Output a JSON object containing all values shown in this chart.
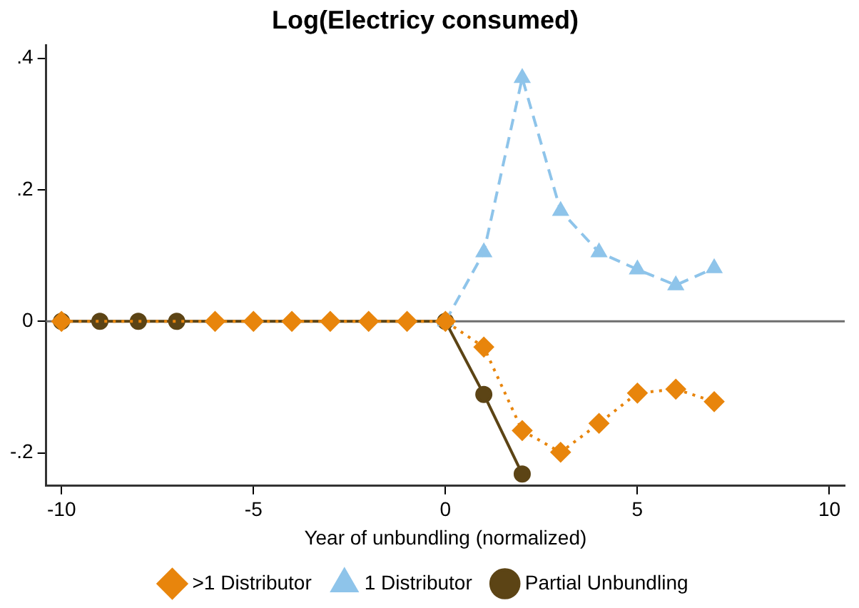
{
  "chart_data": {
    "type": "line",
    "title": "Log(Electricy consumed)",
    "xlabel": "Year of unbundling (normalized)",
    "xlim": [
      -10.4,
      10.4
    ],
    "xticks": [
      -10,
      -5,
      0,
      5,
      10
    ],
    "ylim": [
      -0.25,
      0.42
    ],
    "yticks": [
      {
        "value": -0.2,
        "label": "-.2"
      },
      0,
      {
        "value": 0.2,
        "label": ".2"
      },
      {
        "value": 0.4,
        "label": ".4"
      }
    ],
    "grid": false,
    "legend": "bottom",
    "ref_lines": [
      {
        "axis": "y",
        "value": 0,
        "color": "#6e6e6e"
      }
    ],
    "series": [
      {
        "name": "Partial Unbundling",
        "color": "#5c4415",
        "marker": "circle",
        "line_style": "solid",
        "x": [
          -10,
          -9,
          -8,
          -7,
          0,
          1,
          2
        ],
        "values": [
          0,
          0,
          0,
          0,
          0,
          -0.111,
          -0.232
        ]
      },
      {
        "name": "1 Distributor",
        "color": "#8ec4ea",
        "marker": "triangle",
        "line_style": "dashed",
        "x": [
          0,
          1,
          2,
          3,
          4,
          5,
          6,
          7
        ],
        "values": [
          0,
          0.105,
          0.37,
          0.168,
          0.105,
          0.079,
          0.055,
          0.081
        ]
      },
      {
        "name": ">1 Distributor",
        "color": "#e8850c",
        "marker": "diamond",
        "line_style": "dotted",
        "x": [
          -10,
          -6,
          -5,
          -4,
          -3,
          -2,
          -1,
          0,
          1,
          2,
          3,
          4,
          5,
          6,
          7
        ],
        "values": [
          0,
          0,
          0,
          0,
          0,
          0,
          0,
          0,
          -0.039,
          -0.166,
          -0.199,
          -0.155,
          -0.109,
          -0.103,
          -0.122
        ]
      }
    ]
  }
}
